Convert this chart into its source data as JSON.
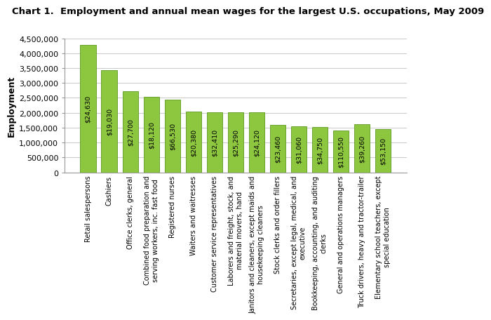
{
  "title": "Chart 1.  Employment and annual mean wages for the largest U.S. occupations, May 2009",
  "categories": [
    "Retail salespersons",
    "Cashiers",
    "Office clerks, general",
    "Combined food preparation and\nserving workers, inc. fast food",
    "Registered nurses",
    "Waiters and waitresses",
    "Customer service representatives",
    "Laborers and freight, stock, and\nmaterial movers, hand",
    "Janitors and cleaners, except maids and\nhousekeeping cleaners",
    "Stock clerks and order fillers",
    "Secretaries, except legal, medical, and\nexecutive",
    "Bookkeeping, accounting, and auditing\nclerks",
    "General and operations managers",
    "Truck drivers, heavy and tractor-trailer",
    "Elementary school teachers, except\nspecial education"
  ],
  "values": [
    4280230,
    3439080,
    2724130,
    2539350,
    2443460,
    2051660,
    2016450,
    2015220,
    2005840,
    1587890,
    1549000,
    1532060,
    1399000,
    1605000,
    1459000
  ],
  "wages": [
    "$24,630",
    "$19,030",
    "$27,700",
    "$18,120",
    "$66,530",
    "$20,380",
    "$32,410",
    "$25,290",
    "$24,120",
    "$23,460",
    "$31,060",
    "$34,750",
    "$110,550",
    "$39,260",
    "$53,150"
  ],
  "bar_color": "#8DC63F",
  "bar_edge_color": "#5a9a1e",
  "ylabel": "Employment",
  "ylim": [
    0,
    4500000
  ],
  "yticks": [
    0,
    500000,
    1000000,
    1500000,
    2000000,
    2500000,
    3000000,
    3500000,
    4000000,
    4500000
  ],
  "background_color": "#ffffff",
  "title_fontsize": 9.5,
  "label_fontsize": 7.0,
  "wage_fontsize": 6.8,
  "ylabel_fontsize": 9,
  "grid_color": "#cccccc"
}
